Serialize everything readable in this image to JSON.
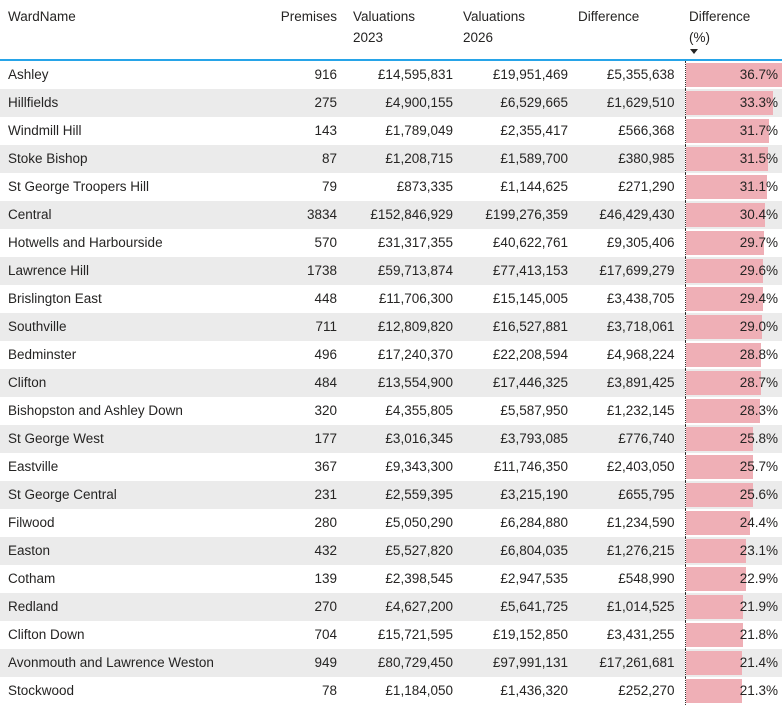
{
  "colors": {
    "header_underline": "#27a4e8",
    "data_bar": "#efafb6",
    "alt_row_background": "#ebebeb",
    "text": "#252423"
  },
  "sort": {
    "column": "Difference (%)",
    "direction": "descending"
  },
  "chart_data": {
    "type": "table",
    "bar_column": "Difference (%)",
    "bar_max": 36.7,
    "columns": [
      {
        "key": "ward",
        "label": "WardName"
      },
      {
        "key": "premises",
        "label": "Premises"
      },
      {
        "key": "val2023",
        "label": "Valuations\n2023"
      },
      {
        "key": "val2026",
        "label": "Valuations\n2026"
      },
      {
        "key": "diff",
        "label": "Difference"
      },
      {
        "key": "pct",
        "label": "Difference\n(%)"
      }
    ],
    "rows": [
      {
        "ward": "Ashley",
        "premises": "916",
        "val2023": "£14,595,831",
        "val2026": "£19,951,469",
        "diff": "£5,355,638",
        "pct": "36.7%",
        "pct_value": 36.7
      },
      {
        "ward": "Hillfields",
        "premises": "275",
        "val2023": "£4,900,155",
        "val2026": "£6,529,665",
        "diff": "£1,629,510",
        "pct": "33.3%",
        "pct_value": 33.3
      },
      {
        "ward": "Windmill Hill",
        "premises": "143",
        "val2023": "£1,789,049",
        "val2026": "£2,355,417",
        "diff": "£566,368",
        "pct": "31.7%",
        "pct_value": 31.7
      },
      {
        "ward": "Stoke Bishop",
        "premises": "87",
        "val2023": "£1,208,715",
        "val2026": "£1,589,700",
        "diff": "£380,985",
        "pct": "31.5%",
        "pct_value": 31.5
      },
      {
        "ward": "St George Troopers Hill",
        "premises": "79",
        "val2023": "£873,335",
        "val2026": "£1,144,625",
        "diff": "£271,290",
        "pct": "31.1%",
        "pct_value": 31.1
      },
      {
        "ward": "Central",
        "premises": "3834",
        "val2023": "£152,846,929",
        "val2026": "£199,276,359",
        "diff": "£46,429,430",
        "pct": "30.4%",
        "pct_value": 30.4
      },
      {
        "ward": "Hotwells and Harbourside",
        "premises": "570",
        "val2023": "£31,317,355",
        "val2026": "£40,622,761",
        "diff": "£9,305,406",
        "pct": "29.7%",
        "pct_value": 29.7
      },
      {
        "ward": "Lawrence Hill",
        "premises": "1738",
        "val2023": "£59,713,874",
        "val2026": "£77,413,153",
        "diff": "£17,699,279",
        "pct": "29.6%",
        "pct_value": 29.6
      },
      {
        "ward": "Brislington East",
        "premises": "448",
        "val2023": "£11,706,300",
        "val2026": "£15,145,005",
        "diff": "£3,438,705",
        "pct": "29.4%",
        "pct_value": 29.4
      },
      {
        "ward": "Southville",
        "premises": "711",
        "val2023": "£12,809,820",
        "val2026": "£16,527,881",
        "diff": "£3,718,061",
        "pct": "29.0%",
        "pct_value": 29.0
      },
      {
        "ward": "Bedminster",
        "premises": "496",
        "val2023": "£17,240,370",
        "val2026": "£22,208,594",
        "diff": "£4,968,224",
        "pct": "28.8%",
        "pct_value": 28.8
      },
      {
        "ward": "Clifton",
        "premises": "484",
        "val2023": "£13,554,900",
        "val2026": "£17,446,325",
        "diff": "£3,891,425",
        "pct": "28.7%",
        "pct_value": 28.7
      },
      {
        "ward": "Bishopston and Ashley Down",
        "premises": "320",
        "val2023": "£4,355,805",
        "val2026": "£5,587,950",
        "diff": "£1,232,145",
        "pct": "28.3%",
        "pct_value": 28.3
      },
      {
        "ward": "St George West",
        "premises": "177",
        "val2023": "£3,016,345",
        "val2026": "£3,793,085",
        "diff": "£776,740",
        "pct": "25.8%",
        "pct_value": 25.8
      },
      {
        "ward": "Eastville",
        "premises": "367",
        "val2023": "£9,343,300",
        "val2026": "£11,746,350",
        "diff": "£2,403,050",
        "pct": "25.7%",
        "pct_value": 25.7
      },
      {
        "ward": "St George Central",
        "premises": "231",
        "val2023": "£2,559,395",
        "val2026": "£3,215,190",
        "diff": "£655,795",
        "pct": "25.6%",
        "pct_value": 25.6
      },
      {
        "ward": "Filwood",
        "premises": "280",
        "val2023": "£5,050,290",
        "val2026": "£6,284,880",
        "diff": "£1,234,590",
        "pct": "24.4%",
        "pct_value": 24.4
      },
      {
        "ward": "Easton",
        "premises": "432",
        "val2023": "£5,527,820",
        "val2026": "£6,804,035",
        "diff": "£1,276,215",
        "pct": "23.1%",
        "pct_value": 23.1
      },
      {
        "ward": "Cotham",
        "premises": "139",
        "val2023": "£2,398,545",
        "val2026": "£2,947,535",
        "diff": "£548,990",
        "pct": "22.9%",
        "pct_value": 22.9
      },
      {
        "ward": "Redland",
        "premises": "270",
        "val2023": "£4,627,200",
        "val2026": "£5,641,725",
        "diff": "£1,014,525",
        "pct": "21.9%",
        "pct_value": 21.9
      },
      {
        "ward": "Clifton Down",
        "premises": "704",
        "val2023": "£15,721,595",
        "val2026": "£19,152,850",
        "diff": "£3,431,255",
        "pct": "21.8%",
        "pct_value": 21.8
      },
      {
        "ward": "Avonmouth and Lawrence Weston",
        "premises": "949",
        "val2023": "£80,729,450",
        "val2026": "£97,991,131",
        "diff": "£17,261,681",
        "pct": "21.4%",
        "pct_value": 21.4
      },
      {
        "ward": "Stockwood",
        "premises": "78",
        "val2023": "£1,184,050",
        "val2026": "£1,436,320",
        "diff": "£252,270",
        "pct": "21.3%",
        "pct_value": 21.3
      }
    ]
  }
}
